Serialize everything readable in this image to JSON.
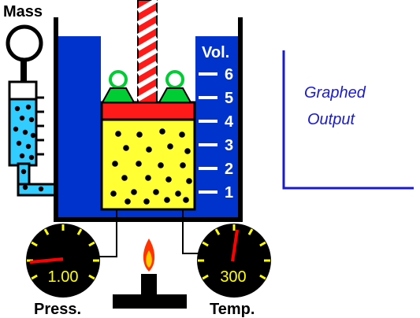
{
  "labels": {
    "mass": "Mass",
    "volume_axis": "Vol.",
    "pressure": "Press.",
    "temperature": "Temp.",
    "graph_line1": "Graphed",
    "graph_line2": "Output"
  },
  "volume_scale": [
    "1",
    "2",
    "3",
    "4",
    "5",
    "6"
  ],
  "gauges": {
    "pressure_value": "1.00",
    "temperature_value": "300"
  },
  "colors": {
    "water": "#0033cc",
    "gas": "#ffff33",
    "piston": "#ff1a1a",
    "weight": "#00cc33",
    "manometer": "#33ccff",
    "gauge_face": "#000000",
    "gauge_tick": "#ffff00",
    "needle": "#ff0000",
    "graph_text": "#1a1ad6",
    "flame_outer": "#ff3300",
    "flame_inner": "#ffcc00"
  }
}
